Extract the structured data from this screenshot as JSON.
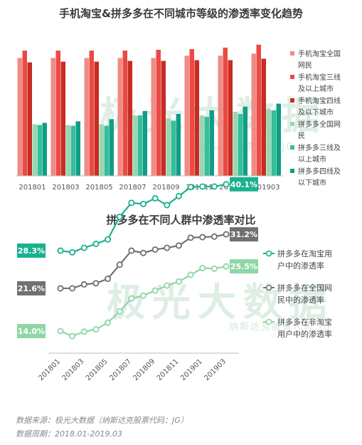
{
  "chart1_title": "手机淘宝&拼多多在不同城市等级的渗透率变化趋势",
  "chart2_title": "拼多多在不同人群中渗透率对比",
  "watermark": {
    "text": "极光大数据",
    "sub": "纳斯达克股票代码:JG"
  },
  "source_line": "数据来源：极光大数据（纳斯达克股票代码：JG）",
  "period_line": "数据周期：2018.01-2019.03",
  "colors": {
    "tb_all": "#f08b86",
    "tb_3": "#ea4a43",
    "tb_4": "#c82c22",
    "pdd_all": "#9bd6b3",
    "pdd_3": "#35bf99",
    "pdd_4": "#0e9e86",
    "line_tb": "#1ab18f",
    "line_all": "#707070",
    "line_non": "#8fd6a6"
  },
  "chart_data": [
    {
      "type": "bar",
      "title": "手机淘宝&拼多多在不同城市等级的渗透率变化趋势",
      "categories": [
        "201801",
        "201803",
        "201805",
        "201807",
        "201809",
        "201811",
        "201901",
        "201903"
      ],
      "ylim": [
        0,
        100
      ],
      "legend_position": "right",
      "series": [
        {
          "name": "手机淘宝全国网民",
          "values": [
            80,
            80,
            80,
            80,
            80,
            81.5,
            81.5,
            83
          ]
        },
        {
          "name": "手机淘宝三线及以上城市",
          "values": [
            85,
            85,
            85,
            85,
            85.5,
            86,
            87,
            89
          ]
        },
        {
          "name": "手机淘宝四线及以下城市",
          "values": [
            77,
            77.5,
            77.5,
            78,
            78,
            78.5,
            78.5,
            79.5
          ]
        },
        {
          "name": "拼多多全国网民",
          "values": [
            35,
            34.5,
            35,
            41,
            39,
            41,
            43.5,
            45.5
          ]
        },
        {
          "name": "拼多多三线及以上城市",
          "values": [
            34.5,
            34,
            34,
            41,
            37.5,
            40,
            42,
            44.5
          ]
        },
        {
          "name": "拼多多四线及以下城市",
          "values": [
            36,
            37,
            38.5,
            44,
            42,
            44.5,
            47,
            49
          ]
        }
      ]
    },
    {
      "type": "line",
      "title": "拼多多在不同人群中渗透率对比",
      "x": [
        "201801",
        "201802",
        "201803",
        "201804",
        "201805",
        "201806",
        "201807",
        "201808",
        "201809",
        "201810",
        "201811",
        "201812",
        "201901",
        "201902",
        "201903"
      ],
      "xticks": [
        "201801",
        "201803",
        "201805",
        "201807",
        "201809",
        "201811",
        "201901",
        "201903"
      ],
      "ylim": [
        10,
        45
      ],
      "legend_position": "right",
      "series": [
        {
          "name": "拼多多在淘宝用户中的渗透率",
          "values": [
            28.3,
            28.0,
            28.8,
            29.5,
            30.3,
            34.3,
            36.8,
            36.6,
            37.6,
            36.4,
            38.0,
            39.6,
            39.7,
            39.7,
            40.1
          ],
          "start_label": "28.3%",
          "end_label": "40.1%"
        },
        {
          "name": "拼多多在全国网民中的渗透率",
          "values": [
            21.6,
            21.6,
            22.3,
            22.5,
            23.3,
            25.8,
            28.3,
            27.9,
            28.5,
            28.8,
            29.2,
            30.6,
            30.7,
            30.8,
            31.2
          ],
          "start_label": "21.6%",
          "end_label": "31.2%"
        },
        {
          "name": "拼多多在非淘宝用户中的渗透率",
          "values": [
            14.0,
            13.1,
            13.9,
            14.3,
            15.5,
            17.5,
            19.8,
            20.3,
            21.2,
            22.1,
            22.8,
            24.0,
            25.2,
            25.1,
            25.5
          ],
          "start_label": "14.0%",
          "end_label": "25.5%"
        }
      ]
    }
  ]
}
